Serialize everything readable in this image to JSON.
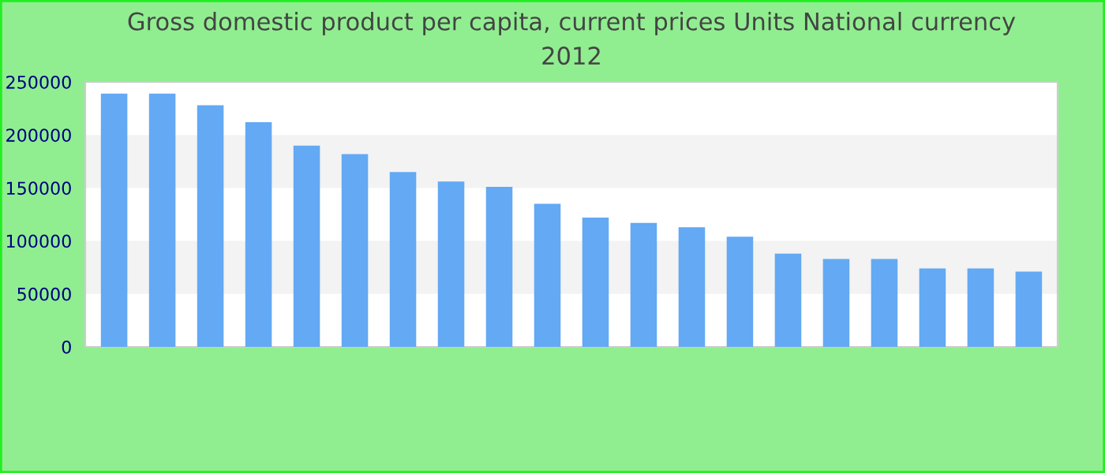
{
  "chart_data": {
    "type": "bar",
    "title": "Gross domestic product per capita, current prices Units National currency\n2012",
    "categories": [
      null,
      null,
      null,
      null,
      null,
      null,
      null,
      null,
      null,
      null,
      null,
      null,
      null,
      null,
      null,
      null,
      null,
      null,
      null,
      null
    ],
    "values": [
      239000,
      239000,
      228000,
      212000,
      190000,
      182000,
      165000,
      156000,
      151000,
      135000,
      122000,
      117000,
      113000,
      104000,
      88000,
      83000,
      83000,
      74000,
      74000,
      71000
    ],
    "color": "#63a9f4",
    "ylim": [
      0,
      250000
    ],
    "yticks": [
      0,
      50000,
      100000,
      150000,
      200000,
      250000
    ]
  }
}
